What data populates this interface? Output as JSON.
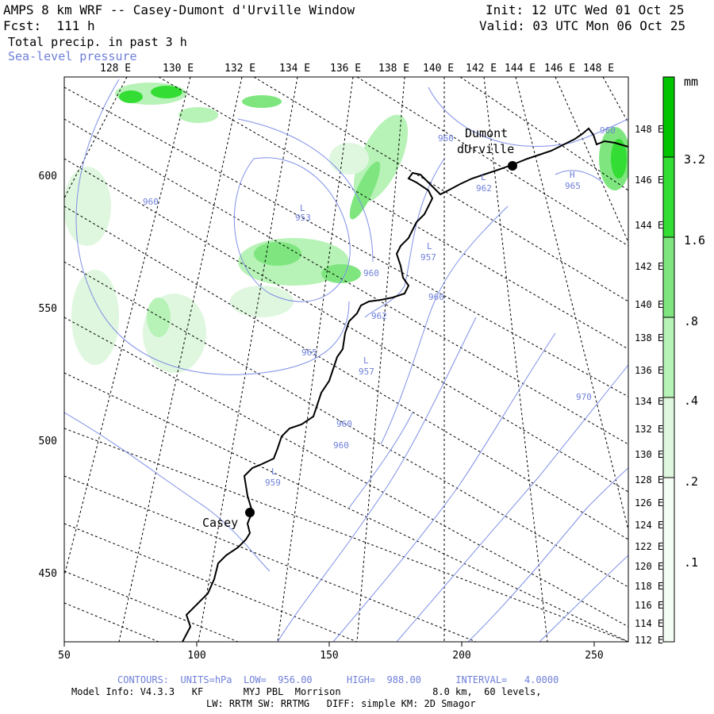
{
  "header": {
    "title": "AMPS 8 km WRF -- Casey-Dumont d'Urville Window",
    "forecast": "Fcst:  111 h",
    "field": "Total precip. in past 3 h",
    "overlay": "Sea-level pressure",
    "init": "Init: 12 UTC Wed 01 Oct 25",
    "valid": "Valid: 03 UTC Mon 06 Oct 25"
  },
  "axes": {
    "x_ticks": [
      "50",
      "100",
      "150",
      "200",
      "250"
    ],
    "y_ticks": [
      "600",
      "550",
      "500",
      "450"
    ]
  },
  "longitude_labels": [
    "128 E",
    "130 E",
    "132 E",
    "134 E",
    "136 E",
    "138 E",
    "140 E",
    "142 E",
    "144 E",
    "146 E",
    "148 E"
  ],
  "latitude_labels": [
    "148 E",
    "146 E",
    "144 E",
    "142 E",
    "140 E",
    "138 E",
    "136 E",
    "134 E",
    "132 E",
    "130 E",
    "128 E",
    "126 E",
    "124 E",
    "122 E",
    "120 E",
    "118 E",
    "116 E",
    "114 E",
    "112 E"
  ],
  "stations": [
    {
      "name": "Dumont",
      "name2": "dUrville"
    },
    {
      "name": "Casey"
    }
  ],
  "isobar_labels": [
    "960",
    "960",
    "953",
    "960",
    "960",
    "957",
    "962",
    "962",
    "965",
    "957",
    "960",
    "960",
    "959",
    "960",
    "965",
    "970",
    "L",
    "L",
    "L",
    "L",
    "H",
    "L"
  ],
  "colorbar": {
    "unit": "mm",
    "labels": [
      "3.2",
      "1.6",
      ".8",
      ".4",
      ".2",
      ".1"
    ],
    "colors": [
      "#00c400",
      "#33dd33",
      "#7fe67f",
      "#b7f2b7",
      "#dff7df",
      "#f4fdf4"
    ]
  },
  "footer": {
    "contours": "CONTOURS:  UNITS=hPa  LOW=  956.00      HIGH=  988.00      INTERVAL=   4.0000",
    "model": "Model Info: V4.3.3   KF       MYJ PBL  Morrison                8.0 km,  60 levels,",
    "physics": "LW: RRTM SW: RRTMG   DIFF: simple KM: 2D Smagor"
  }
}
